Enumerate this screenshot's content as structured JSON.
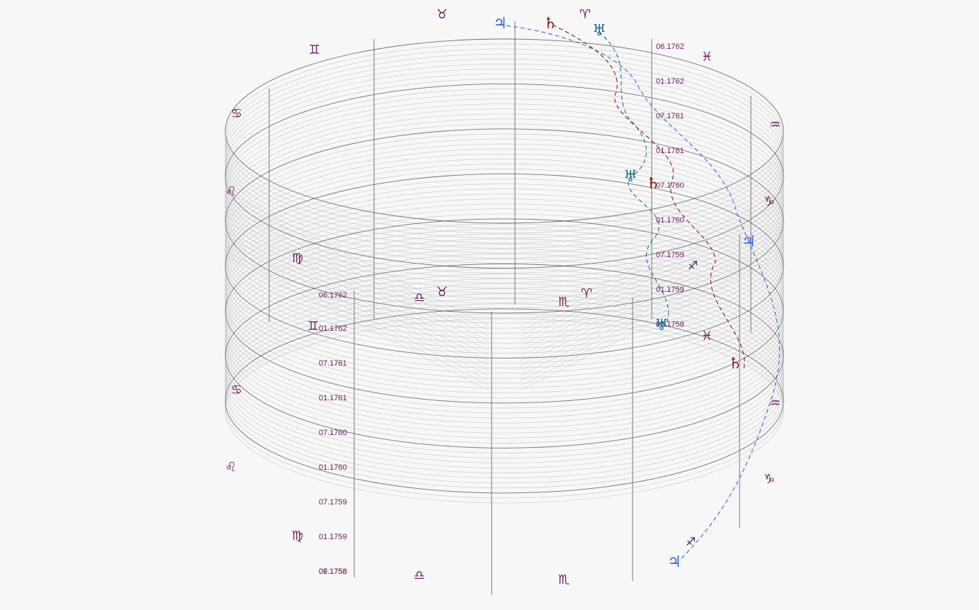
{
  "chart_data": {
    "type": "diagram",
    "description_kind": "3D cylindrical ephemeris of planetary positions over time",
    "time_labels_top_axis": [
      "06.1762",
      "01.1762",
      "07.1761",
      "01.1761",
      "07.1760",
      "01.1760",
      "07.1759",
      "01.1759",
      "06.1758"
    ],
    "time_labels_front_axis": [
      "06.1762",
      "01.1762",
      "07.1761",
      "01.1761",
      "07.1760",
      "01.1760",
      "07.1759",
      "01.1759",
      "07.1758",
      "06.1758"
    ],
    "zodiac_signs_outer": [
      "♉",
      "♊",
      "♋",
      "♌",
      "♍",
      "♎",
      "♏",
      "♈",
      "♓",
      "♒",
      "♑",
      "♐"
    ],
    "planets": [
      {
        "name": "Jupiter",
        "glyph": "♃",
        "color": "#3a66d6"
      },
      {
        "name": "Saturn",
        "glyph": "♄",
        "color": "#8b1a1a"
      },
      {
        "name": "Uranus",
        "glyph": "♅",
        "color": "#1f6d8e"
      }
    ],
    "sagittarius_marker": "♐",
    "colors": {
      "grid_lines": "#9a9a9a",
      "grid_dark": "#444444",
      "label": "#6b1b5e",
      "jupiter": "#3a66d6",
      "saturn": "#8b1a1a",
      "uranus": "#1f6d8e"
    }
  }
}
